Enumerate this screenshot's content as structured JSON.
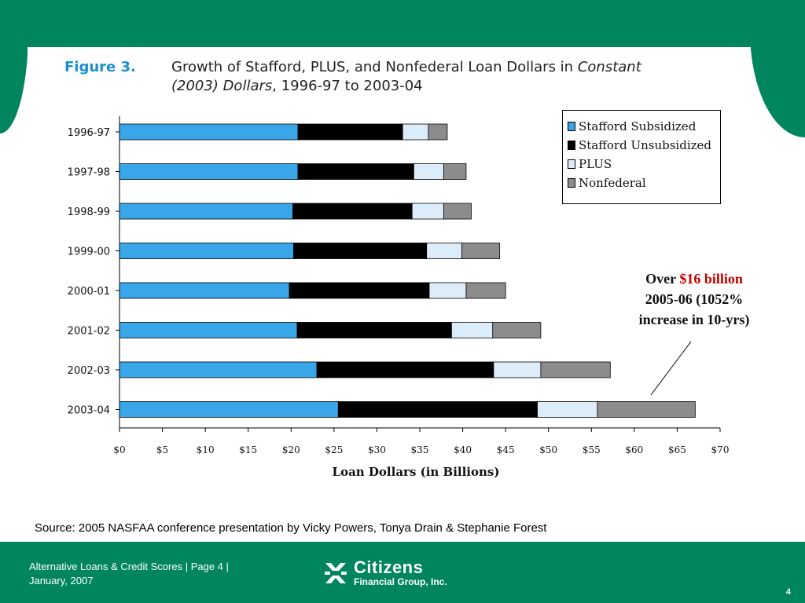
{
  "figure": {
    "label": "Figure 3.",
    "title_line1": "Growth of Stafford, PLUS, and Nonfederal Loan Dollars in ",
    "title_line1_italic": "Constant",
    "title_line2_italic": "(2003) Dollars",
    "title_line2": ", 1996-97 to 2003-04"
  },
  "chart_data": {
    "type": "bar",
    "orientation": "horizontal",
    "stacked": true,
    "categories": [
      "1996-97",
      "1997-98",
      "1998-99",
      "1999-00",
      "2000-01",
      "2001-02",
      "2002-03",
      "2003-04"
    ],
    "series": [
      {
        "name": "Stafford Subsidized",
        "color": "#3aa6ea",
        "values": [
          20.8,
          20.8,
          20.2,
          20.3,
          19.8,
          20.7,
          23.0,
          25.5
        ]
      },
      {
        "name": "Stafford Unsubsidized",
        "color": "#000000",
        "values": [
          12.2,
          13.5,
          13.9,
          15.5,
          16.3,
          18.0,
          20.6,
          23.2
        ]
      },
      {
        "name": "PLUS",
        "color": "#dcecf8",
        "values": [
          3.0,
          3.5,
          3.7,
          4.1,
          4.3,
          4.8,
          5.5,
          7.0
        ]
      },
      {
        "name": "Nonfederal",
        "color": "#8c8c8c",
        "values": [
          2.2,
          2.6,
          3.2,
          4.4,
          4.6,
          5.6,
          8.1,
          11.4
        ]
      }
    ],
    "xlabel": "Loan Dollars (in Billions)",
    "ylabel": "",
    "xlim": [
      0,
      70
    ],
    "xticks": [
      "$0",
      "$5",
      "$10",
      "$15",
      "$20",
      "$25",
      "$30",
      "$35",
      "$40",
      "$45",
      "$50",
      "$55",
      "$60",
      "$65",
      "$70"
    ],
    "legend_position": "top-right",
    "grid": false
  },
  "annotation": {
    "prefix": "Over ",
    "highlight": "$16 billion",
    "line2": "2005-06 (1052%",
    "line3": "increase in 10-yrs)"
  },
  "source": "Source: 2005 NASFAA conference presentation by Vicky Powers, Tonya Drain & Stephanie Forest",
  "footer": {
    "line1": "Alternative Loans & Credit Scores | Page 4 |",
    "line2": "January, 2007",
    "logo_name": "Citizens",
    "logo_sub": "Financial Group, Inc.",
    "page_number": "4"
  },
  "colors": {
    "brand_green": "#00855f",
    "accent_blue": "#1a8fd0",
    "highlight_red": "#c00000"
  }
}
